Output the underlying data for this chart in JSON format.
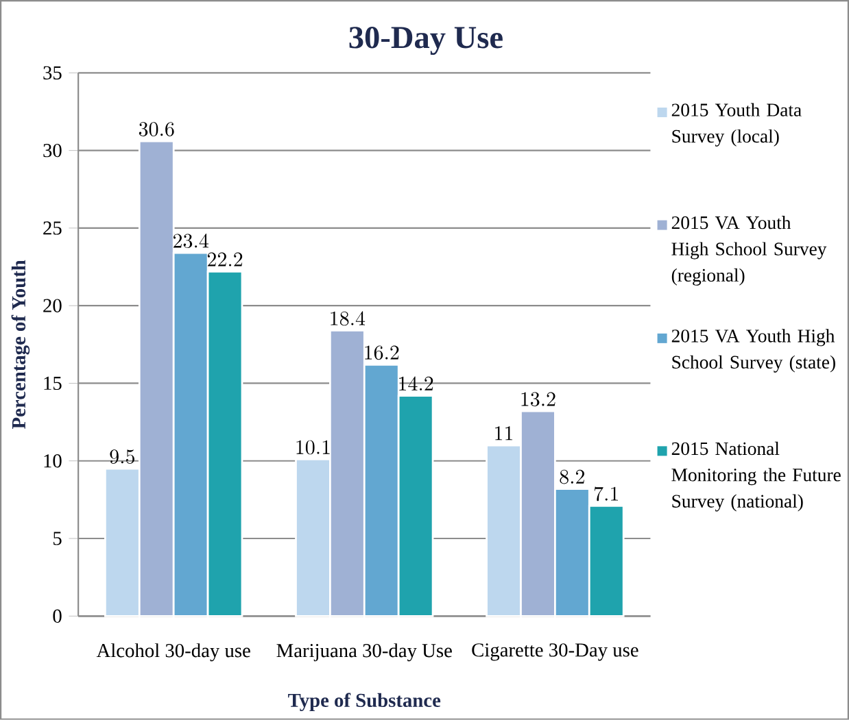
{
  "chart_data": {
    "type": "bar",
    "title": "30-Day Use",
    "xlabel": "Type of Substance",
    "ylabel": "Percentage of Youth",
    "categories": [
      "Alcohol 30-day use",
      "Marijuana 30-day Use",
      "Cigarette 30-Day use"
    ],
    "series": [
      {
        "name": "2015 Youth Data Survey (local)",
        "color": "#bdd7ee",
        "values": [
          9.5,
          10.1,
          11
        ]
      },
      {
        "name": "2015 VA Youth High School Survey (regional)",
        "color": "#9fb1d4",
        "values": [
          30.6,
          18.4,
          13.2
        ]
      },
      {
        "name": "2015 VA Youth High School Survey (state)",
        "color": "#62a7d1",
        "values": [
          23.4,
          16.2,
          8.2
        ]
      },
      {
        "name": "2015 National Monitoring the Future Survey (national)",
        "color": "#1fa3ad",
        "values": [
          22.2,
          14.2,
          7.1
        ]
      }
    ],
    "ylim": [
      0,
      35
    ],
    "yticks": [
      0,
      5,
      10,
      15,
      20,
      25,
      30,
      35
    ],
    "grid": "y",
    "legend": "right",
    "data_labels": true
  }
}
